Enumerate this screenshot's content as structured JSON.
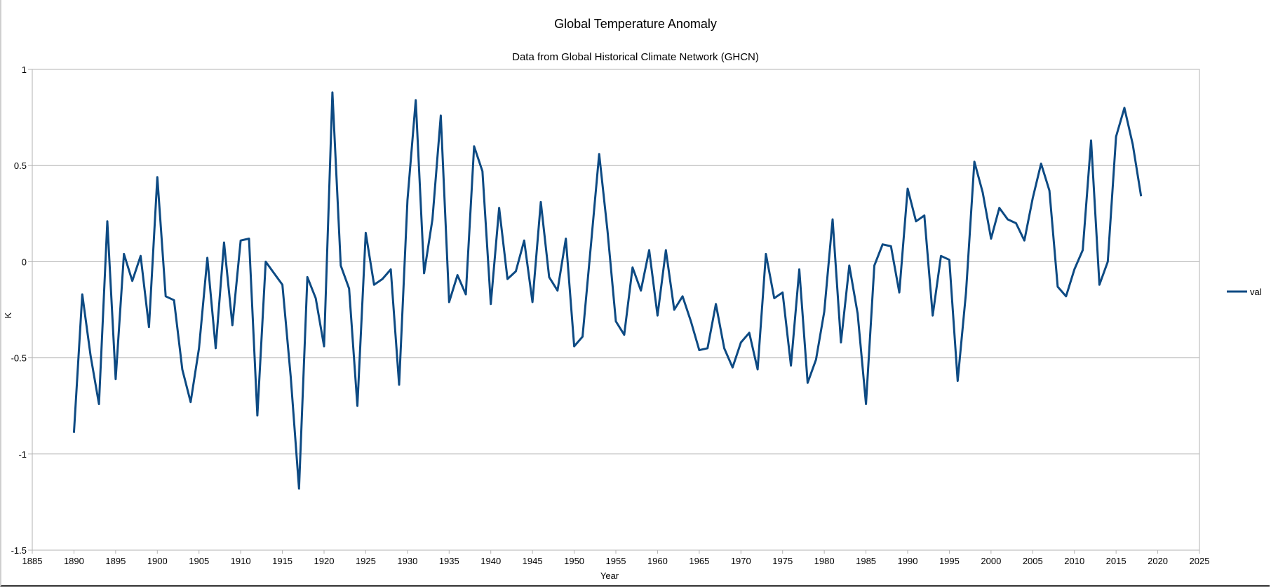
{
  "chart_data": {
    "type": "line",
    "title": "Global Temperature Anomaly",
    "subtitle": "Data from Global Historical Climate Network (GHCN)",
    "xlabel": "Year",
    "ylabel": "K",
    "xlim": [
      1885,
      2025
    ],
    "ylim": [
      -1.5,
      1
    ],
    "xticks": [
      1885,
      1890,
      1895,
      1900,
      1905,
      1910,
      1915,
      1920,
      1925,
      1930,
      1935,
      1940,
      1945,
      1950,
      1955,
      1960,
      1965,
      1970,
      1975,
      1980,
      1985,
      1990,
      1995,
      2000,
      2005,
      2010,
      2015,
      2020,
      2025
    ],
    "xtick_labels": [
      "1885",
      "1890",
      "1895",
      "1900",
      "1905",
      "1910",
      "1915",
      "1920",
      "1925",
      "1930",
      "1935",
      "1940",
      "1945",
      "1950",
      "1955",
      "1960",
      "1965",
      "1970",
      "1975",
      "1980",
      "1985",
      "1990",
      "1995",
      "2000",
      "2005",
      "2010",
      "2015",
      "2020",
      "2025"
    ],
    "yticks": [
      -1.5,
      -1,
      -0.5,
      0,
      0.5,
      1
    ],
    "ytick_labels": [
      "-1.5",
      "-1",
      "-0.5",
      "0",
      "0.5",
      "1"
    ],
    "grid": true,
    "legend": "right",
    "color": "#0d4a83",
    "series": [
      {
        "name": "val",
        "x": [
          1890,
          1891,
          1892,
          1893,
          1894,
          1895,
          1896,
          1897,
          1898,
          1899,
          1900,
          1901,
          1902,
          1903,
          1904,
          1905,
          1906,
          1907,
          1908,
          1909,
          1910,
          1911,
          1912,
          1913,
          1914,
          1915,
          1916,
          1917,
          1918,
          1919,
          1920,
          1921,
          1922,
          1923,
          1924,
          1925,
          1926,
          1927,
          1928,
          1929,
          1930,
          1931,
          1932,
          1933,
          1934,
          1935,
          1936,
          1937,
          1938,
          1939,
          1940,
          1941,
          1942,
          1943,
          1944,
          1945,
          1946,
          1947,
          1948,
          1949,
          1950,
          1951,
          1952,
          1953,
          1954,
          1955,
          1956,
          1957,
          1958,
          1959,
          1960,
          1961,
          1962,
          1963,
          1964,
          1965,
          1966,
          1967,
          1968,
          1969,
          1970,
          1971,
          1972,
          1973,
          1974,
          1975,
          1976,
          1977,
          1978,
          1979,
          1980,
          1981,
          1982,
          1983,
          1984,
          1985,
          1986,
          1987,
          1988,
          1989,
          1990,
          1991,
          1992,
          1993,
          1994,
          1995,
          1996,
          1997,
          1998,
          1999,
          2000,
          2001,
          2002,
          2003,
          2004,
          2005,
          2006,
          2007,
          2008,
          2009,
          2010,
          2011,
          2012,
          2013,
          2014,
          2015,
          2016,
          2017,
          2018
        ],
        "values": [
          -0.89,
          -0.17,
          -0.49,
          -0.74,
          0.21,
          -0.61,
          0.04,
          -0.1,
          0.03,
          -0.34,
          0.44,
          -0.18,
          -0.2,
          -0.56,
          -0.73,
          -0.45,
          0.02,
          -0.45,
          0.1,
          -0.33,
          0.11,
          0.12,
          -0.8,
          0.0,
          -0.06,
          -0.12,
          -0.6,
          -1.18,
          -0.08,
          -0.19,
          -0.44,
          0.88,
          -0.02,
          -0.14,
          -0.75,
          0.15,
          -0.12,
          -0.09,
          -0.04,
          -0.64,
          0.32,
          0.84,
          -0.06,
          0.22,
          0.76,
          -0.21,
          -0.07,
          -0.17,
          0.6,
          0.47,
          -0.22,
          0.28,
          -0.09,
          -0.05,
          0.11,
          -0.21,
          0.31,
          -0.08,
          -0.15,
          0.12,
          -0.44,
          -0.39,
          0.08,
          0.56,
          0.16,
          -0.31,
          -0.38,
          -0.03,
          -0.15,
          0.06,
          -0.28,
          0.06,
          -0.25,
          -0.18,
          -0.31,
          -0.46,
          -0.45,
          -0.22,
          -0.45,
          -0.55,
          -0.42,
          -0.37,
          -0.56,
          0.04,
          -0.19,
          -0.16,
          -0.54,
          -0.04,
          -0.63,
          -0.51,
          -0.26,
          0.22,
          -0.42,
          -0.02,
          -0.27,
          -0.74,
          -0.02,
          0.09,
          0.08,
          -0.16,
          0.38,
          0.21,
          0.24,
          -0.28,
          0.03,
          0.01,
          -0.62,
          -0.16,
          0.52,
          0.36,
          0.12,
          0.28,
          0.22,
          0.2,
          0.11,
          0.33,
          0.51,
          0.37,
          -0.13,
          -0.18,
          -0.04,
          0.06,
          0.63,
          -0.12,
          0.0,
          0.65,
          0.8,
          0.61,
          0.34
        ]
      }
    ]
  }
}
